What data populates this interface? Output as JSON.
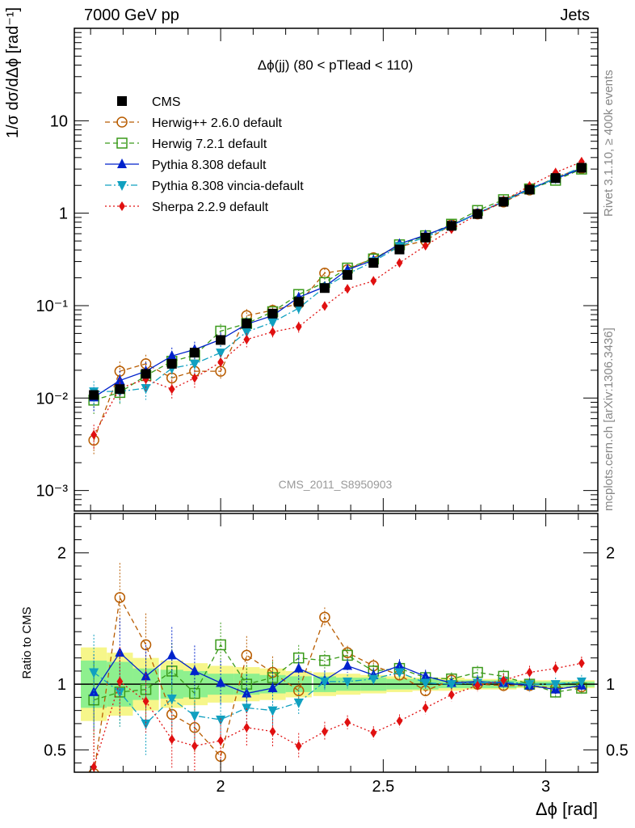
{
  "header": {
    "left": "7000 GeV pp",
    "right": "Jets"
  },
  "side_labels": {
    "rivet": "Rivet 3.1.10, ≥ 400k events",
    "mcplots": "mcplots.cern.ch [arXiv:1306.3436]"
  },
  "chart_data": {
    "type": "line",
    "title": "Δϕ(jj) (80 < pTlead < 110)",
    "watermark": "CMS_2011_S8950903",
    "xlabel": "Δϕ [rad]",
    "ylabel_main": "1/σ dσ/dΔϕ [rad⁻¹]",
    "ylabel_ratio": "Ratio to CMS",
    "xlim": [
      1.55,
      3.16
    ],
    "ylim_main": [
      0.0006,
      100
    ],
    "ylim_ratio": [
      0.33,
      2.3
    ],
    "x_ticks": [
      "2",
      "2.5",
      "3"
    ],
    "y_ticks_main": [
      "10⁻³",
      "10⁻²",
      "10⁻¹",
      "1",
      "10"
    ],
    "y_ticks_ratio": [
      "0.5",
      "1",
      "2"
    ],
    "x": [
      1.61,
      1.69,
      1.77,
      1.85,
      1.92,
      2.0,
      2.08,
      2.16,
      2.24,
      2.32,
      2.39,
      2.47,
      2.55,
      2.63,
      2.71,
      2.79,
      2.87,
      2.95,
      3.03,
      3.11
    ],
    "series": [
      {
        "name": "CMS",
        "color": "#000000",
        "marker": "square-filled",
        "line": "none",
        "values": [
          0.0108,
          0.0125,
          0.0183,
          0.0235,
          0.031,
          0.0425,
          0.064,
          0.082,
          0.11,
          0.155,
          0.215,
          0.29,
          0.405,
          0.545,
          0.73,
          0.98,
          1.33,
          1.8,
          2.4,
          3.1
        ]
      },
      {
        "name": "Herwig++ 2.6.0 default",
        "color": "#b85c00",
        "marker": "circle-open",
        "line": "dashed",
        "values": [
          0.0035,
          0.0195,
          0.0235,
          0.0165,
          0.0195,
          0.0195,
          0.078,
          0.089,
          0.105,
          0.225,
          0.245,
          0.33,
          0.435,
          0.505,
          0.75,
          0.98,
          1.32,
          1.78,
          2.45,
          3.05
        ]
      },
      {
        "name": "Herwig 7.2.1 default",
        "color": "#3a9a1a",
        "marker": "square-open",
        "line": "dashed",
        "values": [
          0.0095,
          0.0115,
          0.0175,
          0.025,
          0.029,
          0.053,
          0.064,
          0.086,
          0.132,
          0.178,
          0.255,
          0.32,
          0.455,
          0.57,
          0.76,
          1.07,
          1.4,
          1.83,
          2.27,
          3.0
        ]
      },
      {
        "name": "Pythia 8.308 default",
        "color": "#0022cc",
        "marker": "triangle-up",
        "line": "solid",
        "values": [
          0.0102,
          0.0155,
          0.0195,
          0.0285,
          0.0335,
          0.043,
          0.063,
          0.078,
          0.123,
          0.16,
          0.245,
          0.31,
          0.465,
          0.58,
          0.74,
          1.0,
          1.34,
          1.85,
          2.35,
          3.05
        ]
      },
      {
        "name": "Pythia 8.308 vincia-default",
        "color": "#10a0c0",
        "marker": "triangle-down",
        "line": "dashdot",
        "values": [
          0.0118,
          0.0118,
          0.0128,
          0.021,
          0.0235,
          0.031,
          0.052,
          0.066,
          0.094,
          0.158,
          0.22,
          0.3,
          0.44,
          0.55,
          0.73,
          0.99,
          1.35,
          1.8,
          2.4,
          3.15
        ]
      },
      {
        "name": "Sherpa 2.2.9 default",
        "color": "#e01010",
        "marker": "diamond",
        "line": "dotted",
        "values": [
          0.004,
          0.0128,
          0.016,
          0.0125,
          0.0165,
          0.0245,
          0.043,
          0.052,
          0.059,
          0.099,
          0.152,
          0.185,
          0.29,
          0.445,
          0.67,
          0.97,
          1.37,
          1.97,
          2.75,
          3.6
        ]
      }
    ],
    "ratio_series": [
      {
        "name": "Herwig++ 2.6.0 default",
        "values": [
          0.32,
          1.66,
          1.3,
          0.77,
          0.67,
          0.45,
          1.22,
          1.09,
          0.95,
          1.51,
          1.24,
          1.14,
          1.07,
          0.95,
          1.03,
          1.0,
          0.99,
          0.99,
          0.97,
          0.98
        ]
      },
      {
        "name": "Herwig 7.2.1 default",
        "values": [
          0.88,
          0.94,
          0.96,
          1.1,
          0.93,
          1.3,
          1.0,
          1.05,
          1.2,
          1.18,
          1.22,
          1.1,
          1.12,
          1.05,
          1.04,
          1.09,
          1.06,
          1.0,
          0.94,
          0.97
        ]
      },
      {
        "name": "Pythia 8.308 default",
        "values": [
          0.94,
          1.24,
          1.06,
          1.22,
          1.1,
          1.01,
          0.93,
          0.97,
          1.12,
          1.03,
          1.14,
          1.07,
          1.14,
          1.06,
          1.01,
          1.02,
          1.01,
          0.99,
          0.96,
          0.99
        ]
      },
      {
        "name": "Pythia 8.308 vincia-default",
        "values": [
          1.09,
          0.94,
          0.7,
          0.89,
          0.76,
          0.73,
          0.82,
          0.8,
          0.86,
          1.02,
          1.02,
          1.04,
          1.09,
          1.01,
          1.0,
          1.01,
          1.02,
          1.0,
          1.0,
          1.02
        ]
      },
      {
        "name": "Sherpa 2.2.9 default",
        "values": [
          0.37,
          1.02,
          0.87,
          0.58,
          0.53,
          0.57,
          0.67,
          0.64,
          0.53,
          0.64,
          0.71,
          0.63,
          0.72,
          0.82,
          0.92,
          0.99,
          1.03,
          1.09,
          1.12,
          1.16
        ]
      }
    ],
    "uncertainty_band": {
      "inner": [
        0.18,
        0.17,
        0.12,
        0.11,
        0.1,
        0.08,
        0.08,
        0.07,
        0.06,
        0.06,
        0.05,
        0.05,
        0.04,
        0.04,
        0.03,
        0.03,
        0.03,
        0.02,
        0.02,
        0.02
      ],
      "outer": [
        0.28,
        0.24,
        0.2,
        0.18,
        0.16,
        0.14,
        0.13,
        0.12,
        0.1,
        0.09,
        0.08,
        0.07,
        0.06,
        0.05,
        0.05,
        0.04,
        0.04,
        0.03,
        0.03,
        0.03
      ],
      "inner_color": "#8ef08e",
      "outer_color": "#f6f68a"
    },
    "legend": {
      "position": "top-left"
    }
  }
}
